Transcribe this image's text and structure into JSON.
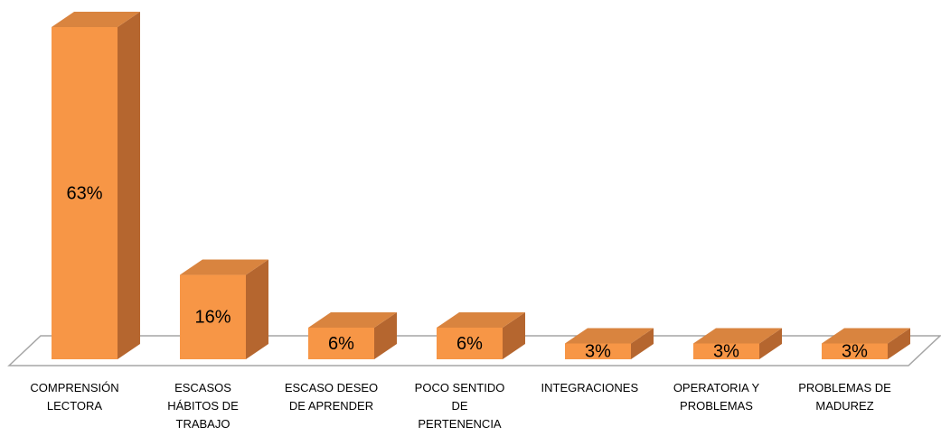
{
  "chart_data": {
    "type": "bar3d",
    "categories": [
      "COMPRENSIÓN LECTORA",
      "ESCASOS HÁBITOS DE TRABAJO",
      "ESCASO DESEO DE APRENDER",
      "POCO SENTIDO DE PERTENENCIA",
      "INTEGRACIONES",
      "OPERATORIA Y PROBLEMAS",
      "PROBLEMAS DE MADUREZ"
    ],
    "values": [
      63,
      16,
      6,
      6,
      3,
      3,
      3
    ],
    "value_labels": [
      "63%",
      "16%",
      "6%",
      "6%",
      "3%",
      "3%",
      "3%"
    ],
    "color": "#F79646"
  }
}
